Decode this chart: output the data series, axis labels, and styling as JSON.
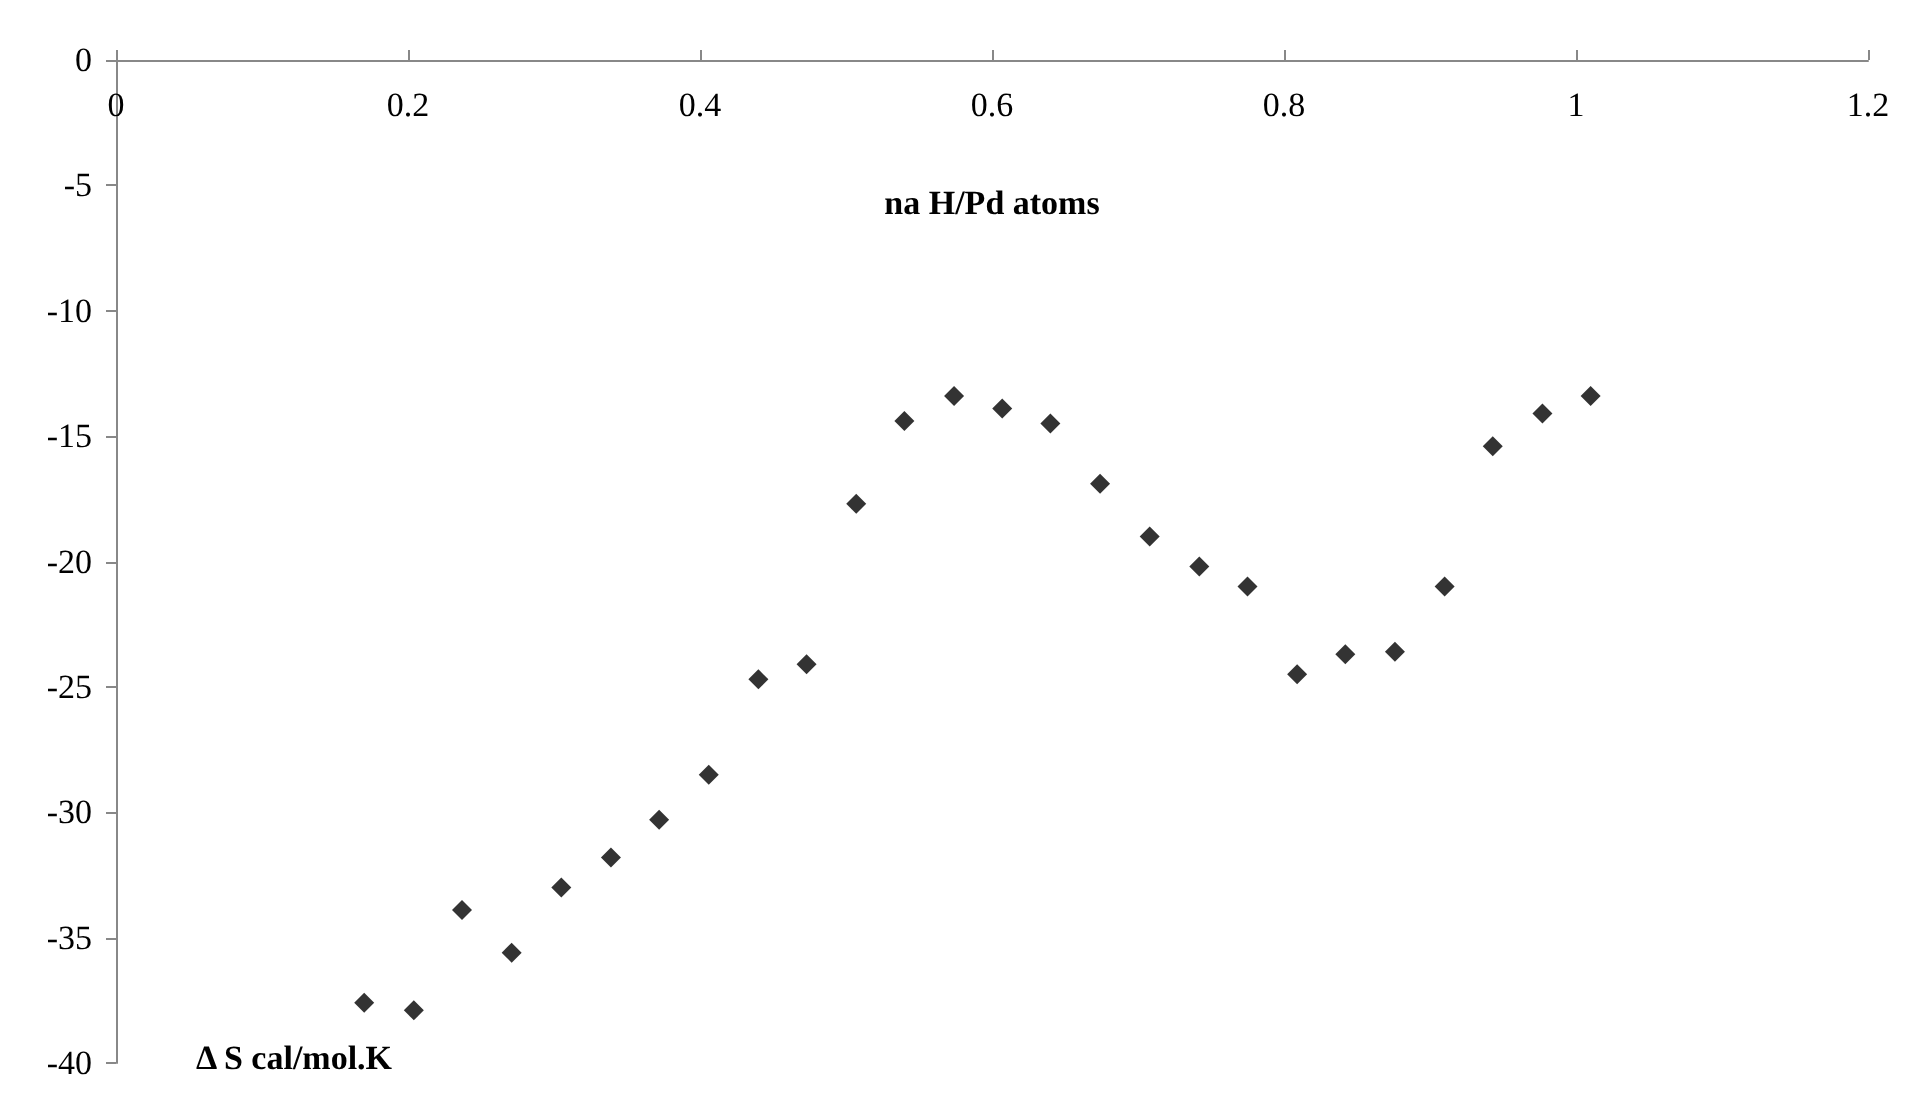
{
  "chart_data": {
    "type": "scatter",
    "xlabel": "na H/Pd atoms",
    "ylabel": "Δ S cal/mol.K",
    "x": [
      0.17,
      0.204,
      0.237,
      0.271,
      0.305,
      0.339,
      0.372,
      0.406,
      0.44,
      0.473,
      0.507,
      0.54,
      0.574,
      0.607,
      0.64,
      0.674,
      0.708,
      0.742,
      0.775,
      0.809,
      0.842,
      0.876,
      0.91,
      0.943,
      0.977,
      1.01
    ],
    "values": [
      -37.6,
      -37.9,
      -33.9,
      -35.6,
      -33.0,
      -31.8,
      -30.3,
      -28.5,
      -24.7,
      -24.1,
      -17.7,
      -14.4,
      -13.4,
      -13.9,
      -14.5,
      -16.9,
      -19.0,
      -20.2,
      -21.0,
      -24.5,
      -23.7,
      -23.6,
      -21.0,
      -15.4,
      -14.1,
      -13.4
    ],
    "color": "#000000",
    "marker": "diamond",
    "grid": false,
    "xlim": [
      0,
      1.2
    ],
    "xticks": [
      0,
      0.2,
      0.4,
      0.6,
      0.8,
      1,
      1.2
    ],
    "ylim": [
      -40,
      0
    ],
    "yticks": [
      -40,
      -35,
      -30,
      -25,
      -20,
      -15,
      -10,
      -5,
      0
    ]
  }
}
